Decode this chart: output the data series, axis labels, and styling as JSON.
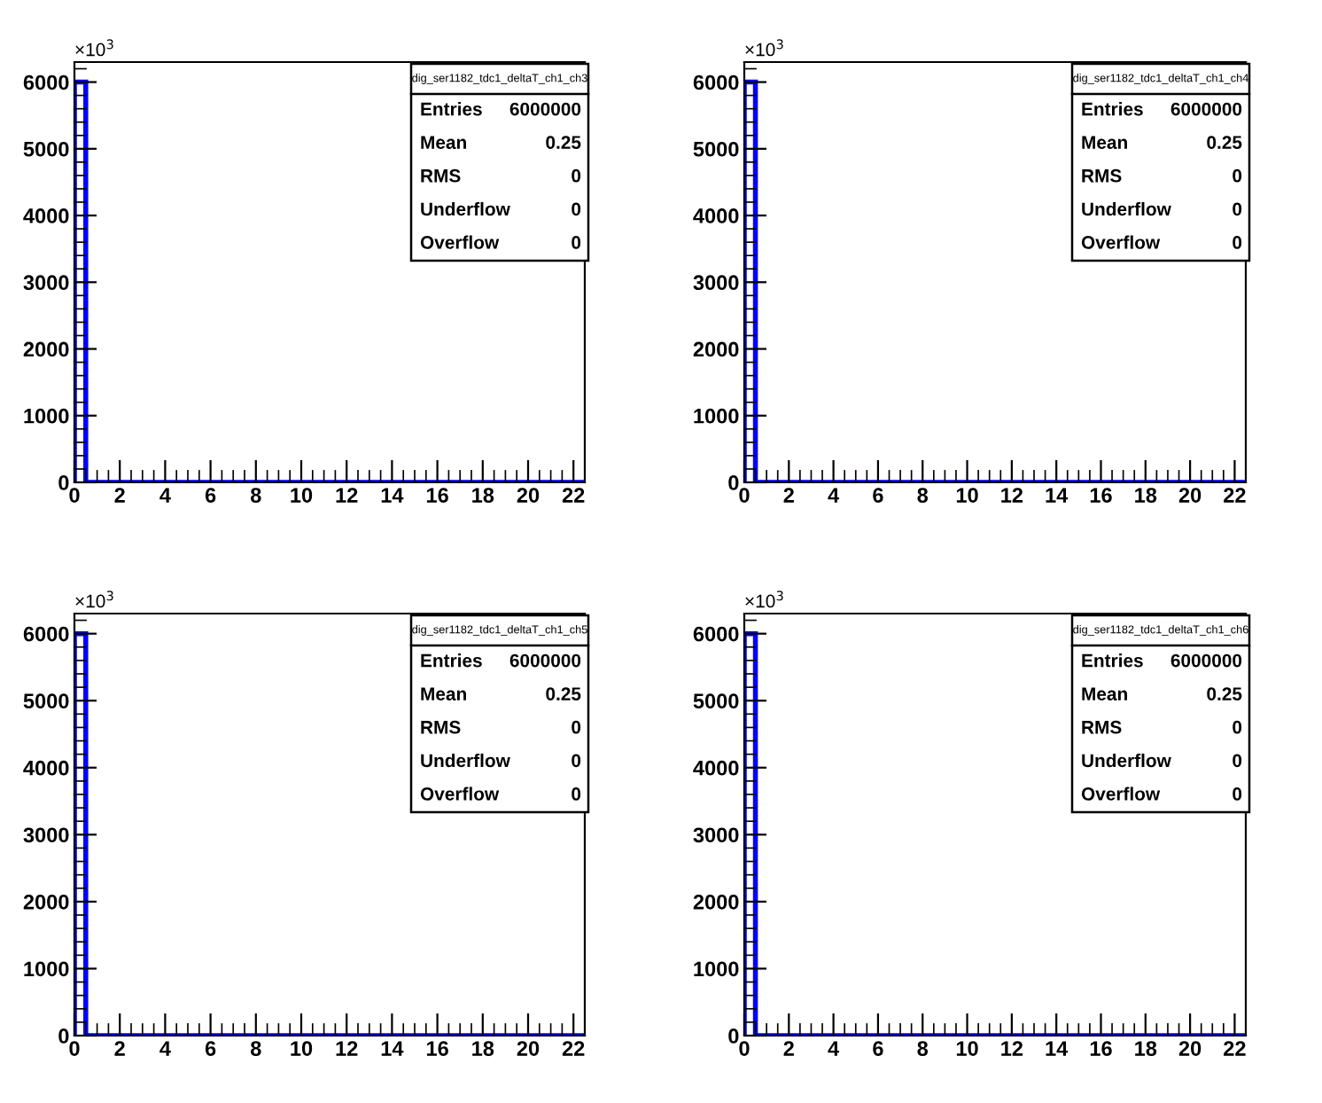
{
  "chart_data": [
    {
      "type": "histogram",
      "bins": [
        0,
        0.5,
        1,
        1.5,
        2,
        2.5,
        3,
        3.5,
        4,
        4.5,
        5,
        5.5,
        6,
        6.5,
        7,
        7.5,
        8,
        8.5,
        9,
        9.5,
        10,
        10.5,
        11,
        11.5,
        12,
        12.5,
        13,
        13.5,
        14,
        14.5,
        15,
        15.5,
        16,
        16.5,
        17,
        17.5,
        18,
        18.5,
        19,
        19.5,
        20,
        20.5,
        21,
        21.5,
        22,
        22.5
      ],
      "values": [
        6000,
        0,
        0,
        0,
        0,
        0,
        0,
        0,
        0,
        0,
        0,
        0,
        0,
        0,
        0,
        0,
        0,
        0,
        0,
        0,
        0,
        0,
        0,
        0,
        0,
        0,
        0,
        0,
        0,
        0,
        0,
        0,
        0,
        0,
        0,
        0,
        0,
        0,
        0,
        0,
        0,
        0,
        0,
        0,
        0
      ],
      "color": "#0000ff",
      "xlim": [
        0,
        22.5
      ],
      "ylim": [
        0,
        6300
      ],
      "xticks": [
        0,
        2,
        4,
        6,
        8,
        10,
        12,
        14,
        16,
        18,
        20,
        22
      ],
      "yticks": [
        0,
        1000,
        2000,
        3000,
        4000,
        5000,
        6000
      ],
      "grid": false,
      "annotations": [
        "×10$^{3}$",
        "dig_ser1182_tdc1_deltaT_ch1_ch3",
        "Entries",
        "6000000",
        "Mean",
        "0.25",
        "RMS",
        "0",
        "Underflow",
        "0",
        "Overflow",
        "0"
      ]
    },
    {
      "type": "histogram",
      "bins": [
        0,
        0.5,
        1,
        1.5,
        2,
        2.5,
        3,
        3.5,
        4,
        4.5,
        5,
        5.5,
        6,
        6.5,
        7,
        7.5,
        8,
        8.5,
        9,
        9.5,
        10,
        10.5,
        11,
        11.5,
        12,
        12.5,
        13,
        13.5,
        14,
        14.5,
        15,
        15.5,
        16,
        16.5,
        17,
        17.5,
        18,
        18.5,
        19,
        19.5,
        20,
        20.5,
        21,
        21.5,
        22,
        22.5
      ],
      "values": [
        6000,
        0,
        0,
        0,
        0,
        0,
        0,
        0,
        0,
        0,
        0,
        0,
        0,
        0,
        0,
        0,
        0,
        0,
        0,
        0,
        0,
        0,
        0,
        0,
        0,
        0,
        0,
        0,
        0,
        0,
        0,
        0,
        0,
        0,
        0,
        0,
        0,
        0,
        0,
        0,
        0,
        0,
        0,
        0,
        0
      ],
      "color": "#0000ff",
      "xlim": [
        0,
        22.5
      ],
      "ylim": [
        0,
        6300
      ],
      "xticks": [
        0,
        2,
        4,
        6,
        8,
        10,
        12,
        14,
        16,
        18,
        20,
        22
      ],
      "yticks": [
        0,
        1000,
        2000,
        3000,
        4000,
        5000,
        6000
      ],
      "grid": false,
      "annotations": [
        "×10$^{3}$",
        "dig_ser1182_tdc1_deltaT_ch1_ch4",
        "Entries",
        "6000000",
        "Mean",
        "0.25",
        "RMS",
        "0",
        "Underflow",
        "0",
        "Overflow",
        "0"
      ]
    },
    {
      "type": "histogram",
      "bins": [
        0,
        0.5,
        1,
        1.5,
        2,
        2.5,
        3,
        3.5,
        4,
        4.5,
        5,
        5.5,
        6,
        6.5,
        7,
        7.5,
        8,
        8.5,
        9,
        9.5,
        10,
        10.5,
        11,
        11.5,
        12,
        12.5,
        13,
        13.5,
        14,
        14.5,
        15,
        15.5,
        16,
        16.5,
        17,
        17.5,
        18,
        18.5,
        19,
        19.5,
        20,
        20.5,
        21,
        21.5,
        22,
        22.5
      ],
      "values": [
        6000,
        0,
        0,
        0,
        0,
        0,
        0,
        0,
        0,
        0,
        0,
        0,
        0,
        0,
        0,
        0,
        0,
        0,
        0,
        0,
        0,
        0,
        0,
        0,
        0,
        0,
        0,
        0,
        0,
        0,
        0,
        0,
        0,
        0,
        0,
        0,
        0,
        0,
        0,
        0,
        0,
        0,
        0,
        0,
        0
      ],
      "color": "#0000ff",
      "xlim": [
        0,
        22.5
      ],
      "ylim": [
        0,
        6300
      ],
      "xticks": [
        0,
        2,
        4,
        6,
        8,
        10,
        12,
        14,
        16,
        18,
        20,
        22
      ],
      "yticks": [
        0,
        1000,
        2000,
        3000,
        4000,
        5000,
        6000
      ],
      "grid": false,
      "annotations": [
        "×10$^{3}$",
        "dig_ser1182_tdc1_deltaT_ch1_ch5",
        "Entries",
        "6000000",
        "Mean",
        "0.25",
        "RMS",
        "0",
        "Underflow",
        "0",
        "Overflow",
        "0"
      ]
    },
    {
      "type": "histogram",
      "bins": [
        0,
        0.5,
        1,
        1.5,
        2,
        2.5,
        3,
        3.5,
        4,
        4.5,
        5,
        5.5,
        6,
        6.5,
        7,
        7.5,
        8,
        8.5,
        9,
        9.5,
        10,
        10.5,
        11,
        11.5,
        12,
        12.5,
        13,
        13.5,
        14,
        14.5,
        15,
        15.5,
        16,
        16.5,
        17,
        17.5,
        18,
        18.5,
        19,
        19.5,
        20,
        20.5,
        21,
        21.5,
        22,
        22.5
      ],
      "values": [
        6000,
        0,
        0,
        0,
        0,
        0,
        0,
        0,
        0,
        0,
        0,
        0,
        0,
        0,
        0,
        0,
        0,
        0,
        0,
        0,
        0,
        0,
        0,
        0,
        0,
        0,
        0,
        0,
        0,
        0,
        0,
        0,
        0,
        0,
        0,
        0,
        0,
        0,
        0,
        0,
        0,
        0,
        0,
        0,
        0
      ],
      "color": "#0000ff",
      "xlim": [
        0,
        22.5
      ],
      "ylim": [
        0,
        6300
      ],
      "xticks": [
        0,
        2,
        4,
        6,
        8,
        10,
        12,
        14,
        16,
        18,
        20,
        22
      ],
      "yticks": [
        0,
        1000,
        2000,
        3000,
        4000,
        5000,
        6000
      ],
      "grid": false,
      "annotations": [
        "×10$^{3}$",
        "dig_ser1182_tdc1_deltaT_ch1_ch6",
        "Entries",
        "6000000",
        "Mean",
        "0.25",
        "RMS",
        "0",
        "Underflow",
        "0",
        "Overflow",
        "0"
      ]
    }
  ]
}
